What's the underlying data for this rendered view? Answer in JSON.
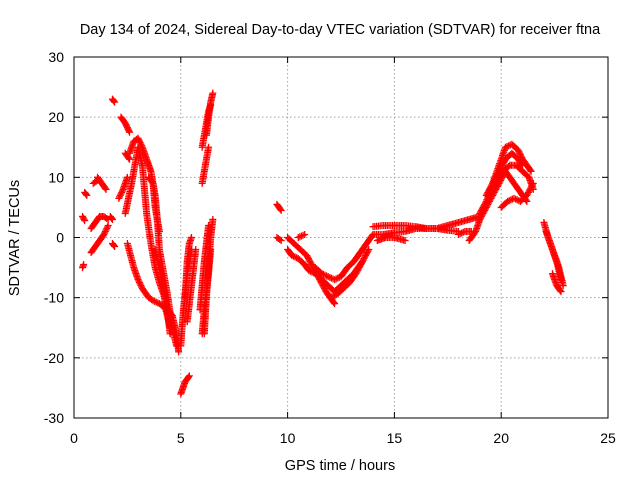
{
  "chart_data": {
    "type": "scatter",
    "title": "Day 134 of 2024, Sidereal Day-to-day VTEC variation (SDTVAR) for receiver ftna",
    "xlabel": "GPS time / hours",
    "ylabel": "SDTVAR / TECUs",
    "xlim": [
      0,
      25
    ],
    "ylim": [
      -30,
      30
    ],
    "xticks": [
      0,
      5,
      10,
      15,
      20,
      25
    ],
    "yticks": [
      -30,
      -20,
      -10,
      0,
      10,
      20,
      30
    ],
    "grid": true,
    "marker": "+",
    "color": "#ff0000",
    "tracks": [
      {
        "name": "t1",
        "x": [
          0.4,
          0.45
        ],
        "y": [
          -5,
          -4.5
        ]
      },
      {
        "name": "t2",
        "x": [
          0.4,
          0.5
        ],
        "y": [
          3.5,
          2.8
        ]
      },
      {
        "name": "t3",
        "x": [
          0.5,
          0.6
        ],
        "y": [
          7.5,
          7
        ]
      },
      {
        "name": "t4",
        "x": [
          0.8,
          1.0,
          1.2,
          1.4,
          1.6
        ],
        "y": [
          1.5,
          2.5,
          3.5,
          3.5,
          3
        ]
      },
      {
        "name": "t5",
        "x": [
          0.8,
          1.0,
          1.2,
          1.4,
          1.6
        ],
        "y": [
          -2.5,
          -1.5,
          -0.5,
          0.5,
          2
        ]
      },
      {
        "name": "t6",
        "x": [
          0.9,
          1.1
        ],
        "y": [
          9,
          9.5
        ]
      },
      {
        "name": "t7",
        "x": [
          1.1,
          1.3,
          1.5
        ],
        "y": [
          10,
          9,
          8
        ]
      },
      {
        "name": "t8",
        "x": [
          1.7,
          1.8
        ],
        "y": [
          3.5,
          3
        ]
      },
      {
        "name": "t9",
        "x": [
          1.8,
          1.9
        ],
        "y": [
          23,
          22.5
        ]
      },
      {
        "name": "t10",
        "x": [
          1.8,
          1.9
        ],
        "y": [
          -1,
          -1.5
        ]
      },
      {
        "name": "t11",
        "x": [
          2.2,
          2.4,
          2.6
        ],
        "y": [
          20,
          19,
          17.5
        ]
      },
      {
        "name": "t12",
        "x": [
          2.1,
          2.3,
          2.5
        ],
        "y": [
          6.5,
          8,
          10
        ]
      },
      {
        "name": "t13",
        "x": [
          2.4,
          2.6
        ],
        "y": [
          14,
          13
        ]
      },
      {
        "name": "t14",
        "x": [
          2.5,
          2.8,
          3.0,
          3.2,
          3.5,
          3.7,
          4.0,
          4.2,
          4.3,
          4.5
        ],
        "y": [
          -1,
          -5,
          -7,
          -8.5,
          -10,
          -10.5,
          -11,
          -11.5,
          -12,
          -15
        ]
      },
      {
        "name": "t15",
        "x": [
          2.4,
          2.7,
          3.0,
          3.2,
          3.4,
          3.6,
          3.8,
          4.0,
          4.2,
          4.4,
          4.5
        ],
        "y": [
          4,
          9,
          15,
          12,
          4,
          -1,
          -5,
          -7.5,
          -9.5,
          -13,
          -16
        ]
      },
      {
        "name": "t16",
        "x": [
          2.6,
          2.8,
          3.0,
          3.2,
          3.4,
          3.6,
          3.8,
          3.9,
          4.0,
          4.2,
          4.4,
          4.6,
          4.8
        ],
        "y": [
          14,
          16,
          16.5,
          15,
          13,
          11,
          7,
          3,
          -2,
          -6,
          -10,
          -15,
          -18
        ]
      },
      {
        "name": "t17",
        "x": [
          3.5,
          3.7,
          3.8,
          3.9,
          4.0
        ],
        "y": [
          10,
          9,
          5,
          3,
          1
        ]
      },
      {
        "name": "t18",
        "x": [
          3.8,
          4.0,
          4.2,
          4.4,
          4.6
        ],
        "y": [
          -2,
          -5,
          -9,
          -12,
          -13
        ]
      },
      {
        "name": "t19",
        "x": [
          4.6,
          4.8,
          4.9
        ],
        "y": [
          -13,
          -16,
          -19
        ]
      },
      {
        "name": "t20",
        "x": [
          5.0,
          5.2,
          5.4
        ],
        "y": [
          -26,
          -24,
          -23
        ]
      },
      {
        "name": "t21",
        "x": [
          5.0,
          5.1,
          5.3,
          5.5
        ],
        "y": [
          -18,
          -13,
          -6,
          -2
        ]
      },
      {
        "name": "t22",
        "x": [
          5.2,
          5.3,
          5.4,
          5.5
        ],
        "y": [
          -10,
          -4,
          -1,
          0
        ]
      },
      {
        "name": "t23",
        "x": [
          5.3,
          5.5,
          5.7
        ],
        "y": [
          -14,
          -8,
          -2
        ]
      },
      {
        "name": "t24",
        "x": [
          5.9,
          6.0,
          6.1,
          6.2,
          6.3
        ],
        "y": [
          -12,
          -8,
          -4,
          -1,
          2
        ]
      },
      {
        "name": "t25",
        "x": [
          6.0,
          6.1,
          6.3,
          6.4
        ],
        "y": [
          -16,
          -12,
          -6,
          -2
        ]
      },
      {
        "name": "t26",
        "x": [
          6.1,
          6.2,
          6.3,
          6.4,
          6.5
        ],
        "y": [
          -16,
          -10,
          -5,
          0,
          3
        ]
      },
      {
        "name": "t27",
        "x": [
          6.0,
          6.1,
          6.2,
          6.3
        ],
        "y": [
          9,
          11,
          13,
          15
        ]
      },
      {
        "name": "t28",
        "x": [
          6.0,
          6.1,
          6.2,
          6.3,
          6.4
        ],
        "y": [
          15,
          17,
          19,
          21,
          22
        ]
      },
      {
        "name": "t29",
        "x": [
          6.2,
          6.3,
          6.4,
          6.5
        ],
        "y": [
          17,
          20,
          22.5,
          24
        ]
      },
      {
        "name": "t30",
        "x": [
          9.5,
          9.7
        ],
        "y": [
          5.5,
          4.5
        ]
      },
      {
        "name": "t31",
        "x": [
          9.5,
          9.7
        ],
        "y": [
          0,
          -0.5
        ]
      },
      {
        "name": "t32",
        "x": [
          10.0,
          10.2,
          10.5,
          10.8,
          11.0,
          11.3,
          11.6,
          11.9,
          12.2,
          12.5,
          12.8,
          13.1,
          13.3,
          13.5
        ],
        "y": [
          -2,
          -3,
          -3.5,
          -4.5,
          -5.5,
          -6,
          -7,
          -8,
          -9,
          -8,
          -7,
          -6,
          -5,
          -4
        ]
      },
      {
        "name": "t33",
        "x": [
          10.0,
          10.3,
          10.6,
          10.9,
          11.2,
          11.5,
          11.8,
          12.0,
          12.2
        ],
        "y": [
          0,
          -1,
          -2,
          -3,
          -5,
          -7,
          -9,
          -10,
          -11
        ]
      },
      {
        "name": "t34",
        "x": [
          10.5,
          10.8
        ],
        "y": [
          0,
          0.5
        ]
      },
      {
        "name": "t35",
        "x": [
          11.3,
          11.6,
          11.9,
          12.2,
          12.5,
          12.8,
          13.1,
          13.4,
          13.7,
          14.0
        ],
        "y": [
          -5,
          -6,
          -6.5,
          -7,
          -6.5,
          -5,
          -4,
          -2.5,
          -1,
          0.5
        ]
      },
      {
        "name": "t36",
        "x": [
          12.0,
          12.3,
          12.6,
          12.9,
          13.2,
          13.5,
          13.8
        ],
        "y": [
          -10,
          -9.5,
          -8.5,
          -7.5,
          -6,
          -4,
          -2
        ]
      },
      {
        "name": "t37",
        "x": [
          14.0,
          14.5,
          15.0,
          15.5,
          16.0,
          16.5,
          17.0,
          17.5,
          18.0,
          18.5,
          19.0
        ],
        "y": [
          0.5,
          0.5,
          0.8,
          1,
          1.5,
          1.5,
          1.5,
          2,
          2.5,
          3,
          3.5
        ]
      },
      {
        "name": "t38",
        "x": [
          14.0,
          14.5,
          15.0,
          15.5,
          16.0,
          16.5,
          17.0,
          17.5,
          18.0
        ],
        "y": [
          1.8,
          2,
          2,
          2,
          1.8,
          1.5,
          1.5,
          1.2,
          1
        ]
      },
      {
        "name": "t39",
        "x": [
          14.2,
          14.6,
          15.0,
          15.5
        ],
        "y": [
          -0.5,
          0,
          0,
          -0.5
        ]
      },
      {
        "name": "t40",
        "x": [
          18.0,
          18.3,
          18.6
        ],
        "y": [
          0.5,
          1,
          1
        ]
      },
      {
        "name": "t41",
        "x": [
          18.5,
          18.8,
          19.0,
          19.3,
          19.6,
          19.9,
          20.2,
          20.4,
          20.6,
          20.8,
          21.0,
          21.2
        ],
        "y": [
          -0.5,
          1,
          3,
          5,
          7,
          9,
          11,
          10,
          9,
          8,
          7,
          6
        ]
      },
      {
        "name": "t42",
        "x": [
          19.0,
          19.3,
          19.6,
          19.9,
          20.2,
          20.5,
          20.8,
          21.0,
          21.2,
          21.4
        ],
        "y": [
          4,
          6,
          9,
          12,
          15,
          15.5,
          14.5,
          13,
          12,
          11
        ]
      },
      {
        "name": "t43",
        "x": [
          19.3,
          19.6,
          19.9,
          20.2,
          20.5,
          20.8,
          21.0
        ],
        "y": [
          7,
          9,
          11,
          13,
          14,
          13,
          12
        ]
      },
      {
        "name": "t44",
        "x": [
          19.5,
          19.8,
          20.1,
          20.4,
          20.7,
          21.0,
          21.3,
          21.5
        ],
        "y": [
          8,
          9.5,
          11,
          12,
          12,
          11,
          10,
          8
        ]
      },
      {
        "name": "t45",
        "x": [
          20.0,
          20.3,
          20.6,
          20.9,
          21.2,
          21.5
        ],
        "y": [
          5,
          6,
          6.5,
          6,
          7,
          9
        ]
      },
      {
        "name": "t46",
        "x": [
          22.0,
          22.2,
          22.4,
          22.6,
          22.8
        ],
        "y": [
          2.5,
          0,
          -2,
          -4,
          -7
        ]
      },
      {
        "name": "t47",
        "x": [
          22.1,
          22.3,
          22.5,
          22.7,
          22.9
        ],
        "y": [
          1,
          -1,
          -3,
          -5,
          -8
        ]
      },
      {
        "name": "t48",
        "x": [
          22.4,
          22.6,
          22.8
        ],
        "y": [
          -6,
          -8,
          -9
        ]
      }
    ]
  }
}
